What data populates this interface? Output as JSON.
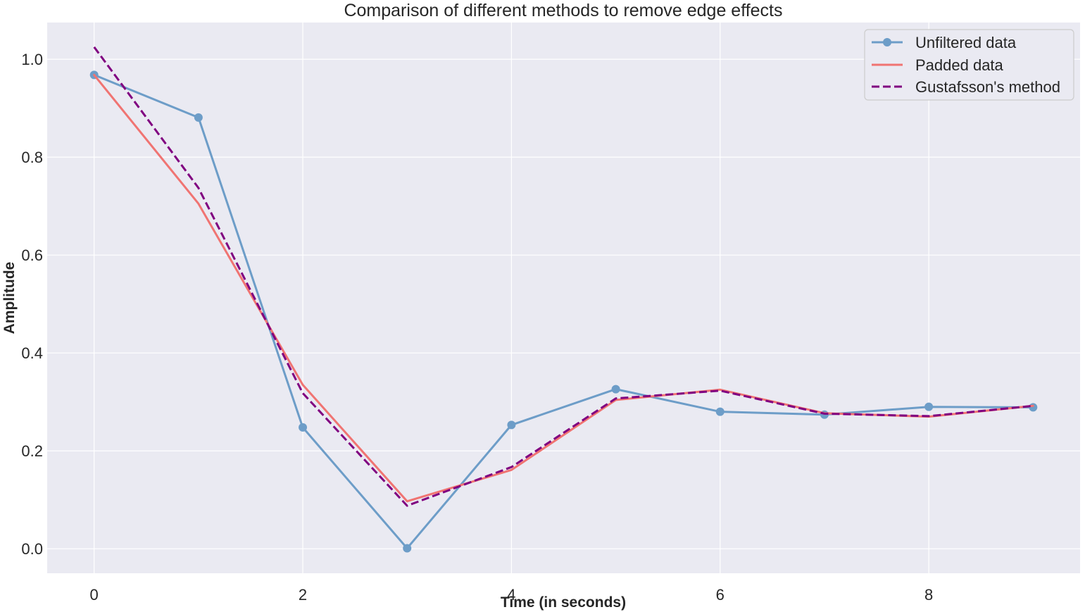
{
  "chart_data": {
    "type": "line",
    "title": "Comparison of different methods to remove edge effects",
    "xlabel": "Time (in seconds)",
    "ylabel": "Amplitude",
    "xlim": [
      -0.45,
      9.45
    ],
    "ylim": [
      -0.05,
      1.075
    ],
    "xticks": [
      0,
      2,
      4,
      6,
      8
    ],
    "xtick_labels": [
      "0",
      "2",
      "4",
      "6",
      "8"
    ],
    "yticks": [
      0.0,
      0.2,
      0.4,
      0.6,
      0.8,
      1.0
    ],
    "ytick_labels": [
      "0.0",
      "0.2",
      "0.4",
      "0.6",
      "0.8",
      "1.0"
    ],
    "grid": true,
    "legend_position": "top-right",
    "x": [
      0,
      1,
      2,
      3,
      4,
      5,
      6,
      7,
      8,
      9
    ],
    "series": [
      {
        "name": "Unfiltered data",
        "values": [
          0.968,
          0.881,
          0.248,
          0.001,
          0.253,
          0.326,
          0.28,
          0.274,
          0.29,
          0.289
        ],
        "color": "#6d9dc8",
        "style": "solid",
        "marker": "circle"
      },
      {
        "name": "Padded data",
        "values": [
          0.968,
          0.705,
          0.335,
          0.097,
          0.161,
          0.304,
          0.325,
          0.277,
          0.27,
          0.292
        ],
        "color": "#f07472",
        "style": "solid",
        "marker": "none"
      },
      {
        "name": "Gustafsson's method",
        "values": [
          1.025,
          0.737,
          0.318,
          0.088,
          0.167,
          0.307,
          0.323,
          0.276,
          0.271,
          0.292
        ],
        "color": "#800080",
        "style": "dashed",
        "marker": "none"
      }
    ]
  }
}
